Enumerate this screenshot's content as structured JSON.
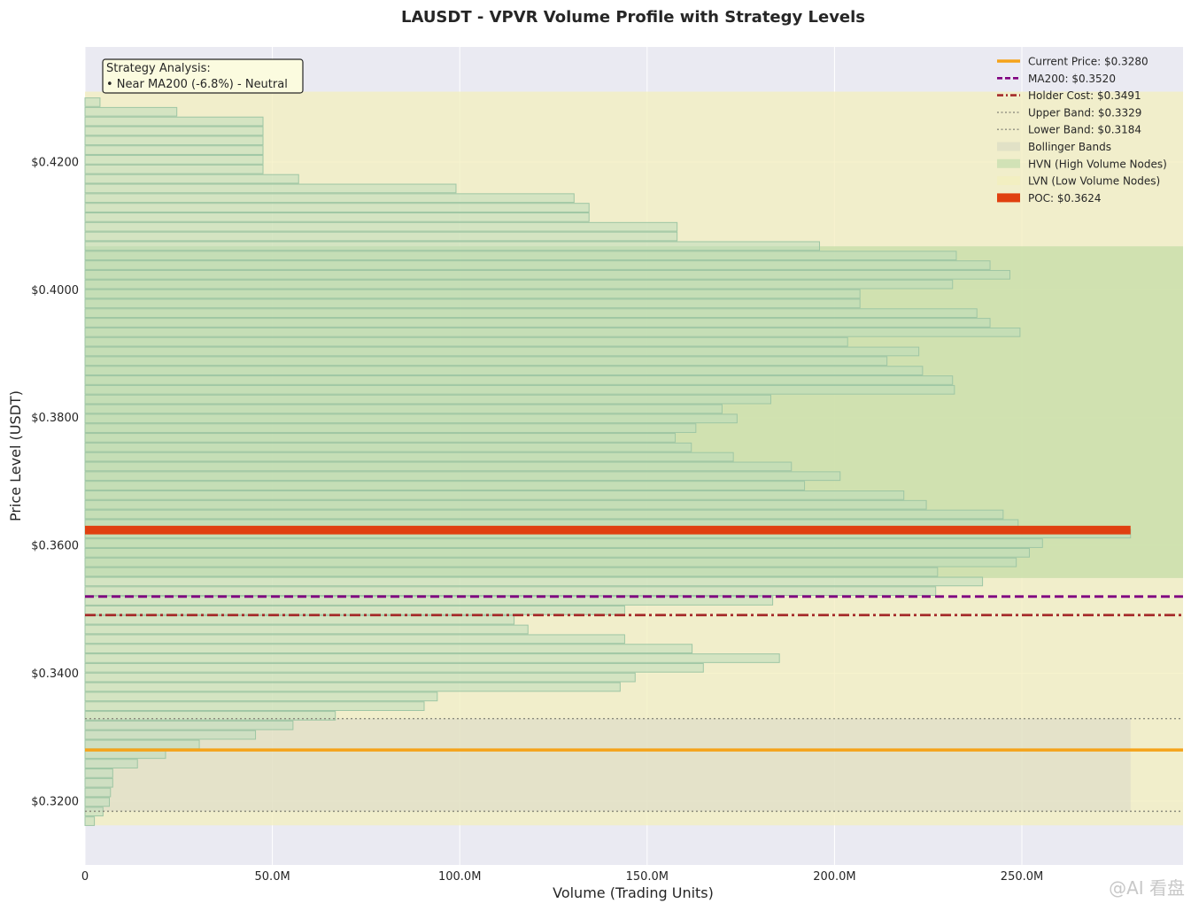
{
  "chart_data": {
    "type": "bar",
    "orientation": "horizontal",
    "title": "LAUSDT - VPVR Volume Profile with Strategy Levels",
    "xlabel": "Volume (Trading Units)",
    "ylabel": "Price Level (USDT)",
    "xlim": [
      0,
      293000000
    ],
    "ylim": [
      0.31,
      0.438
    ],
    "grid": true,
    "legend_position": "top-right",
    "x_ticks": [
      {
        "value": 0,
        "label": "0"
      },
      {
        "value": 50000000,
        "label": "50.0M"
      },
      {
        "value": 100000000,
        "label": "100.0M"
      },
      {
        "value": 150000000,
        "label": "150.0M"
      },
      {
        "value": 200000000,
        "label": "200.0M"
      },
      {
        "value": 250000000,
        "label": "250.0M"
      }
    ],
    "y_ticks": [
      {
        "value": 0.32,
        "label": "$0.3200"
      },
      {
        "value": 0.34,
        "label": "$0.3400"
      },
      {
        "value": 0.36,
        "label": "$0.3600"
      },
      {
        "value": 0.38,
        "label": "$0.3800"
      },
      {
        "value": 0.4,
        "label": "$0.4000"
      },
      {
        "value": 0.42,
        "label": "$0.4200"
      }
    ],
    "profile": {
      "price_start": 0.31685,
      "price_step": 0.0015,
      "bar_height": 0.00135,
      "volumes": [
        2.5,
        4.8,
        6.5,
        6.8,
        7.4,
        7.4,
        14,
        21.5,
        30.5,
        45.5,
        55.5,
        66.8,
        90.5,
        94,
        142.8,
        146.8,
        165,
        185.3,
        162,
        144,
        118.2,
        114.5,
        144,
        183.5,
        227,
        239.5,
        227.5,
        248.5,
        252,
        255.5,
        279,
        249,
        245,
        224.5,
        218.5,
        192,
        201.5,
        188.5,
        173,
        161.8,
        157.5,
        163,
        174,
        170,
        183,
        232,
        231.5,
        223.5,
        214,
        222.5,
        203.5,
        249.5,
        241.5,
        238,
        206.8,
        206.8,
        231.5,
        246.8,
        241.5,
        232.5,
        196,
        158,
        158,
        134.5,
        134.5,
        130.5,
        99,
        57,
        47.5,
        47.5,
        47.5,
        47.5,
        47.5,
        47.5,
        24.5,
        4
      ],
      "volume_unit": "M"
    },
    "lvn_range": [
      0.3162,
      0.431
    ],
    "hvn_range": [
      0.3549,
      0.4068
    ],
    "bollinger_bands": {
      "upper": 0.3329,
      "lower": 0.3184
    },
    "levels": [
      {
        "name": "Current Price",
        "value": 0.328,
        "color": "#f5a31a",
        "style": "solid"
      },
      {
        "name": "MA200",
        "value": 0.352,
        "color": "#800080",
        "style": "dashed"
      },
      {
        "name": "Holder Cost",
        "value": 0.3491,
        "color": "#a52a2a",
        "style": "dashdot"
      },
      {
        "name": "Upper Band",
        "value": 0.3329,
        "color": "#8c8c7e",
        "style": "dotted"
      },
      {
        "name": "Lower Band",
        "value": 0.3184,
        "color": "#8c8c7e",
        "style": "dotted"
      }
    ],
    "poc": {
      "value": 0.3624,
      "volume": 279000000,
      "color": "#e04010"
    },
    "legend": [
      {
        "key": "current",
        "label": "Current Price: $0.3280",
        "kind": "line",
        "color": "#f5a31a",
        "style": "solid"
      },
      {
        "key": "ma200",
        "label": "MA200: $0.3520",
        "kind": "line",
        "color": "#800080",
        "style": "dashed"
      },
      {
        "key": "holder",
        "label": "Holder Cost: $0.3491",
        "kind": "line",
        "color": "#a52a2a",
        "style": "dashdot"
      },
      {
        "key": "upper",
        "label": "Upper Band: $0.3329",
        "kind": "line",
        "color": "#8c8c7e",
        "style": "dotted"
      },
      {
        "key": "lower",
        "label": "Lower Band: $0.3184",
        "kind": "line",
        "color": "#8c8c7e",
        "style": "dotted"
      },
      {
        "key": "bb",
        "label": "Bollinger Bands",
        "kind": "patch",
        "color": "#ddddc4"
      },
      {
        "key": "hvn",
        "label": "HVN (High Volume Nodes)",
        "kind": "patch",
        "color": "#c9dfb0"
      },
      {
        "key": "lvn",
        "label": "LVN (Low Volume Nodes)",
        "kind": "patch",
        "color": "#f3efbe"
      },
      {
        "key": "poc",
        "label": "POC: $0.3624",
        "kind": "patch",
        "color": "#e04010"
      }
    ],
    "annotation": {
      "title": "Strategy Analysis:",
      "line": "• Near MA200 (-6.8%) - Neutral"
    }
  },
  "watermark": "@AI 看盘"
}
